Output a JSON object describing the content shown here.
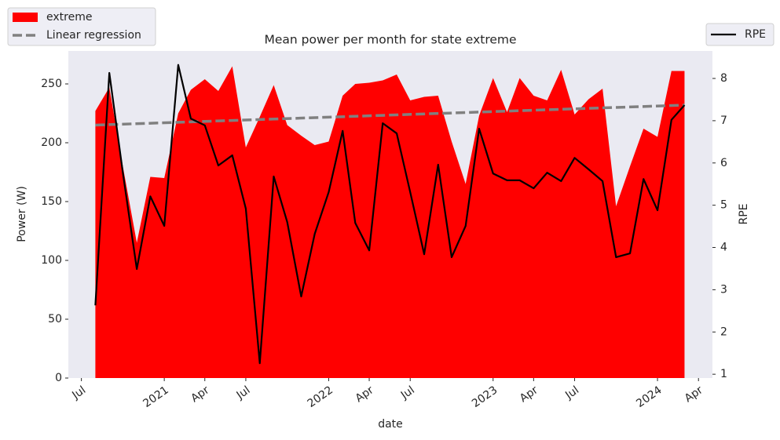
{
  "chart_data": {
    "type": "area",
    "title": "Mean power per month for state extreme",
    "x_label": "date",
    "y_label": "Power (W)",
    "y2_label": "RPE",
    "x": [
      "2020-08",
      "2020-09",
      "2020-10",
      "2020-11",
      "2020-12",
      "2021-01",
      "2021-02",
      "2021-03",
      "2021-04",
      "2021-05",
      "2021-06",
      "2021-07",
      "2021-08",
      "2021-09",
      "2021-10",
      "2021-11",
      "2021-12",
      "2022-01",
      "2022-02",
      "2022-03",
      "2022-04",
      "2022-05",
      "2022-06",
      "2022-07",
      "2022-08",
      "2022-09",
      "2022-10",
      "2022-11",
      "2022-12",
      "2023-01",
      "2023-02",
      "2023-03",
      "2023-04",
      "2023-05",
      "2023-06",
      "2023-07",
      "2023-08",
      "2023-09",
      "2023-10",
      "2023-11",
      "2023-12",
      "2024-01",
      "2024-02",
      "2024-03"
    ],
    "series": [
      {
        "name": "extreme",
        "type": "area",
        "color": "#ff0000",
        "values": [
          227,
          247,
          180,
          115,
          171,
          170,
          225,
          245,
          254,
          244,
          265,
          196,
          222,
          249,
          215,
          206,
          198,
          201,
          240,
          250,
          251,
          253,
          258,
          236,
          239,
          240,
          201,
          165,
          223,
          255,
          226,
          255,
          240,
          236,
          262,
          224,
          237,
          246,
          146,
          180,
          212,
          205,
          261,
          261
        ]
      },
      {
        "name": "Linear regression",
        "type": "line",
        "style": "dashed",
        "color": "#808080",
        "x": [
          "2020-08",
          "2024-03"
        ],
        "values": [
          215,
          232
        ]
      },
      {
        "name": "RPE",
        "type": "line",
        "axis": "y2",
        "color": "#000000",
        "values": [
          2.63,
          8.13,
          5.77,
          3.49,
          5.21,
          4.51,
          8.32,
          7.05,
          6.89,
          5.94,
          6.18,
          4.92,
          1.26,
          5.68,
          4.6,
          2.84,
          4.32,
          5.31,
          6.76,
          4.58,
          3.93,
          6.94,
          6.7,
          5.31,
          3.84,
          5.96,
          3.77,
          4.51,
          6.81,
          5.75,
          5.59,
          5.59,
          5.4,
          5.77,
          5.57,
          6.12,
          5.85,
          5.57,
          3.77,
          3.86,
          5.62,
          4.88,
          7.02,
          7.37
        ]
      }
    ],
    "xlim": [
      "2020-06-02",
      "2024-05-02"
    ],
    "xticks": [
      {
        "value": "2020-07-01",
        "label": "Jul"
      },
      {
        "value": "2021-01-01",
        "label": "2021"
      },
      {
        "value": "2021-04-01",
        "label": "Apr"
      },
      {
        "value": "2021-07-01",
        "label": "Jul"
      },
      {
        "value": "2022-01-01",
        "label": "2022"
      },
      {
        "value": "2022-04-01",
        "label": "Apr"
      },
      {
        "value": "2022-07-01",
        "label": "Jul"
      },
      {
        "value": "2023-01-01",
        "label": "2023"
      },
      {
        "value": "2023-04-01",
        "label": "Apr"
      },
      {
        "value": "2023-07-01",
        "label": "Jul"
      },
      {
        "value": "2024-01-01",
        "label": "2024"
      },
      {
        "value": "2024-04-01",
        "label": "Apr"
      }
    ],
    "ylim": [
      0,
      278
    ],
    "yticks": [
      0,
      50,
      100,
      150,
      200,
      250
    ],
    "y2lim": [
      0.91,
      8.65
    ],
    "y2ticks": [
      1,
      2,
      3,
      4,
      5,
      6,
      7,
      8
    ],
    "grid": false,
    "background": "#eaeaf2"
  }
}
